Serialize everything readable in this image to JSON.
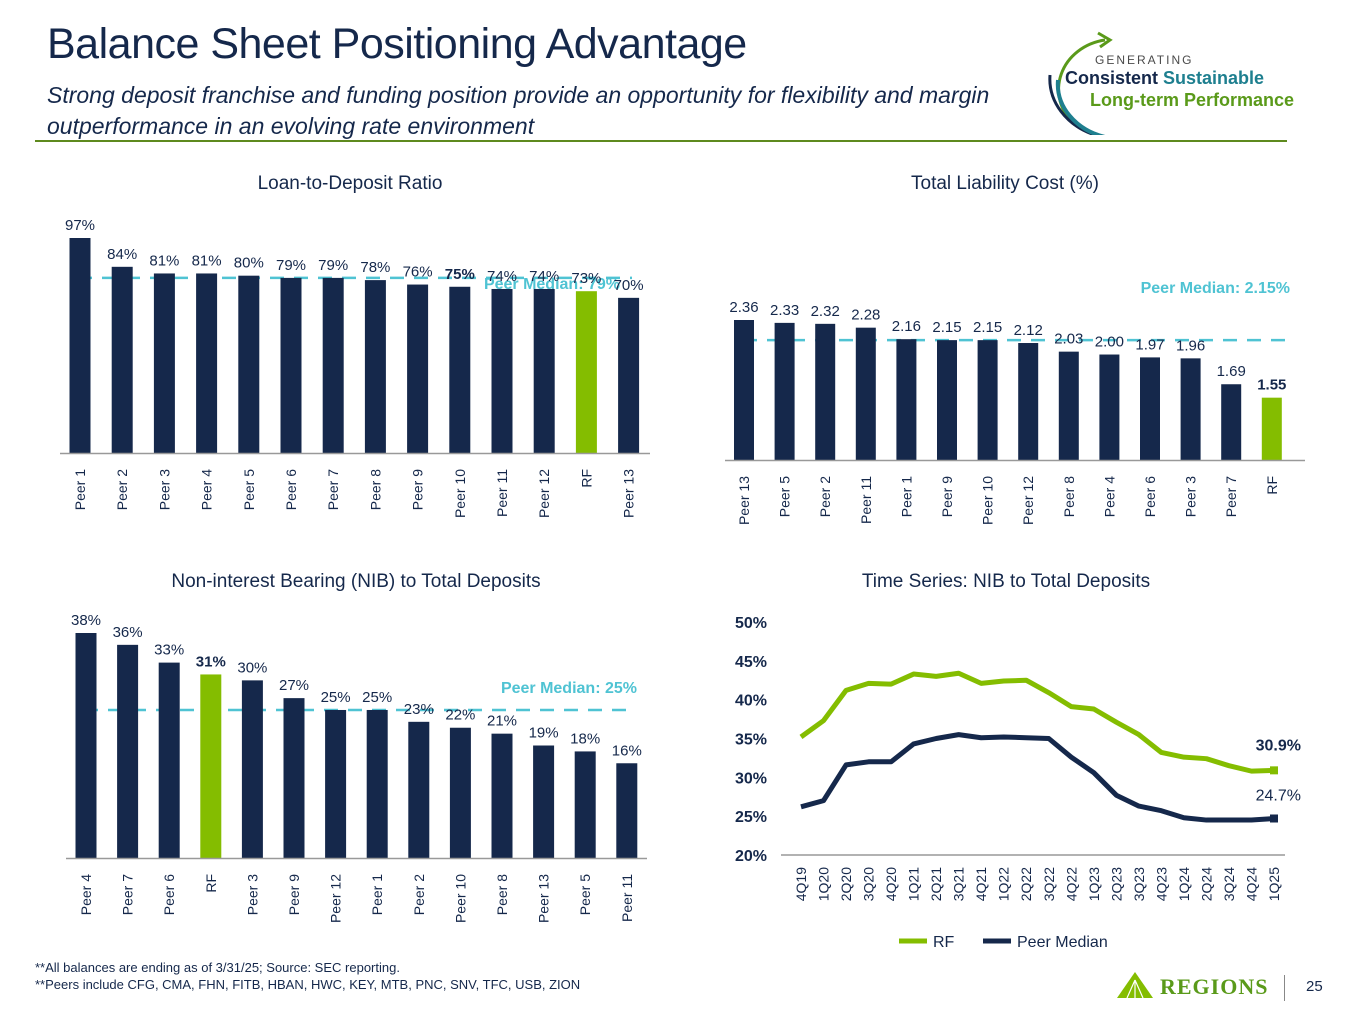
{
  "header": {
    "title": "Balance Sheet Positioning Advantage",
    "subtitle": "Strong deposit franchise and funding position provide an opportunity for flexibility and margin outperformance in an evolving rate environment"
  },
  "logo": {
    "line_small": "GENERATING",
    "line1a": "Consistent",
    "line1b": "Sustainable",
    "line2": "Long-term Performance"
  },
  "colors": {
    "navy": "#15284b",
    "green": "#84bd00",
    "median": "#4fc3d3",
    "rule": "#5e8a1e"
  },
  "chart_data": [
    {
      "type": "bar",
      "title": "Loan-to-Deposit Ratio",
      "categories": [
        "Peer 1",
        "Peer 2",
        "Peer 3",
        "Peer 4",
        "Peer 5",
        "Peer 6",
        "Peer 7",
        "Peer 8",
        "Peer 9",
        "Peer 10",
        "Peer 11",
        "Peer 12",
        "RF",
        "Peer 13"
      ],
      "values": [
        97,
        84,
        81,
        81,
        80,
        79,
        79,
        78,
        76,
        75,
        74,
        74,
        73,
        70
      ],
      "labels": [
        "97%",
        "84%",
        "81%",
        "81%",
        "80%",
        "79%",
        "79%",
        "78%",
        "76%",
        "75%",
        "74%",
        "74%",
        "73%",
        "70%"
      ],
      "highlight": "RF",
      "bold_label": "Peer 10",
      "median": 79,
      "median_label": "Peer Median: 79%",
      "unit": "%"
    },
    {
      "type": "bar",
      "title": "Total Liability Cost (%)",
      "categories": [
        "Peer 13",
        "Peer 5",
        "Peer 2",
        "Peer 11",
        "Peer 1",
        "Peer 9",
        "Peer 10",
        "Peer 12",
        "Peer 8",
        "Peer 4",
        "Peer 6",
        "Peer 3",
        "Peer 7",
        "RF"
      ],
      "values": [
        2.36,
        2.33,
        2.32,
        2.28,
        2.16,
        2.15,
        2.15,
        2.12,
        2.03,
        2.0,
        1.97,
        1.96,
        1.69,
        1.55
      ],
      "labels": [
        "2.36",
        "2.33",
        "2.32",
        "2.28",
        "2.16",
        "2.15",
        "2.15",
        "2.12",
        "2.03",
        "2.00",
        "1.97",
        "1.96",
        "1.69",
        "1.55"
      ],
      "highlight": "RF",
      "bold_label": "RF",
      "median": 2.15,
      "median_label": "Peer Median: 2.15%",
      "unit": "%"
    },
    {
      "type": "bar",
      "title": "Non-interest Bearing (NIB) to Total Deposits",
      "categories": [
        "Peer 4",
        "Peer 7",
        "Peer 6",
        "RF",
        "Peer 3",
        "Peer 9",
        "Peer 12",
        "Peer 1",
        "Peer 2",
        "Peer 10",
        "Peer 8",
        "Peer 13",
        "Peer 5",
        "Peer 11"
      ],
      "values": [
        38,
        36,
        33,
        31,
        30,
        27,
        25,
        25,
        23,
        22,
        21,
        19,
        18,
        16
      ],
      "labels": [
        "38%",
        "36%",
        "33%",
        "31%",
        "30%",
        "27%",
        "25%",
        "25%",
        "23%",
        "22%",
        "21%",
        "19%",
        "18%",
        "16%"
      ],
      "highlight": "RF",
      "bold_label": "RF",
      "median": 25,
      "median_label": "Peer Median: 25%",
      "unit": "%"
    },
    {
      "type": "line",
      "title": "Time Series: NIB to Total Deposits",
      "x": [
        "4Q19",
        "1Q20",
        "2Q20",
        "3Q20",
        "4Q20",
        "1Q21",
        "2Q21",
        "3Q21",
        "4Q21",
        "1Q22",
        "2Q22",
        "3Q22",
        "4Q22",
        "1Q23",
        "2Q23",
        "3Q23",
        "4Q23",
        "1Q24",
        "2Q24",
        "3Q24",
        "4Q24",
        "1Q25"
      ],
      "ylim": [
        20,
        50
      ],
      "yticks": [
        "20%",
        "25%",
        "30%",
        "35%",
        "40%",
        "45%",
        "50%"
      ],
      "ytick_values": [
        20,
        25,
        30,
        35,
        40,
        45,
        50
      ],
      "legend": "bottom",
      "series": [
        {
          "name": "RF",
          "color": "#84bd00",
          "values": [
            35.2,
            37.3,
            41.2,
            42.1,
            42.0,
            43.3,
            43.0,
            43.4,
            42.1,
            42.4,
            42.5,
            40.9,
            39.1,
            38.8,
            37.1,
            35.5,
            33.2,
            32.6,
            32.4,
            31.5,
            30.8,
            30.9
          ],
          "end_label": "30.9%"
        },
        {
          "name": "Peer Median",
          "color": "#15284b",
          "values": [
            26.2,
            27.0,
            31.6,
            32.0,
            32.0,
            34.3,
            35.0,
            35.5,
            35.1,
            35.2,
            35.1,
            35.0,
            32.6,
            30.6,
            27.7,
            26.3,
            25.7,
            24.8,
            24.5,
            24.5,
            24.5,
            24.7
          ],
          "end_label": "24.7%"
        }
      ]
    }
  ],
  "footnotes": [
    "**All balances are ending as of 3/31/25; Source: SEC reporting.",
    "**Peers include CFG, CMA, FHN, FITB, HBAN, HWC, KEY, MTB, PNC, SNV, TFC, USB, ZION"
  ],
  "footer": {
    "brand": "Regions",
    "page_number": "25"
  }
}
